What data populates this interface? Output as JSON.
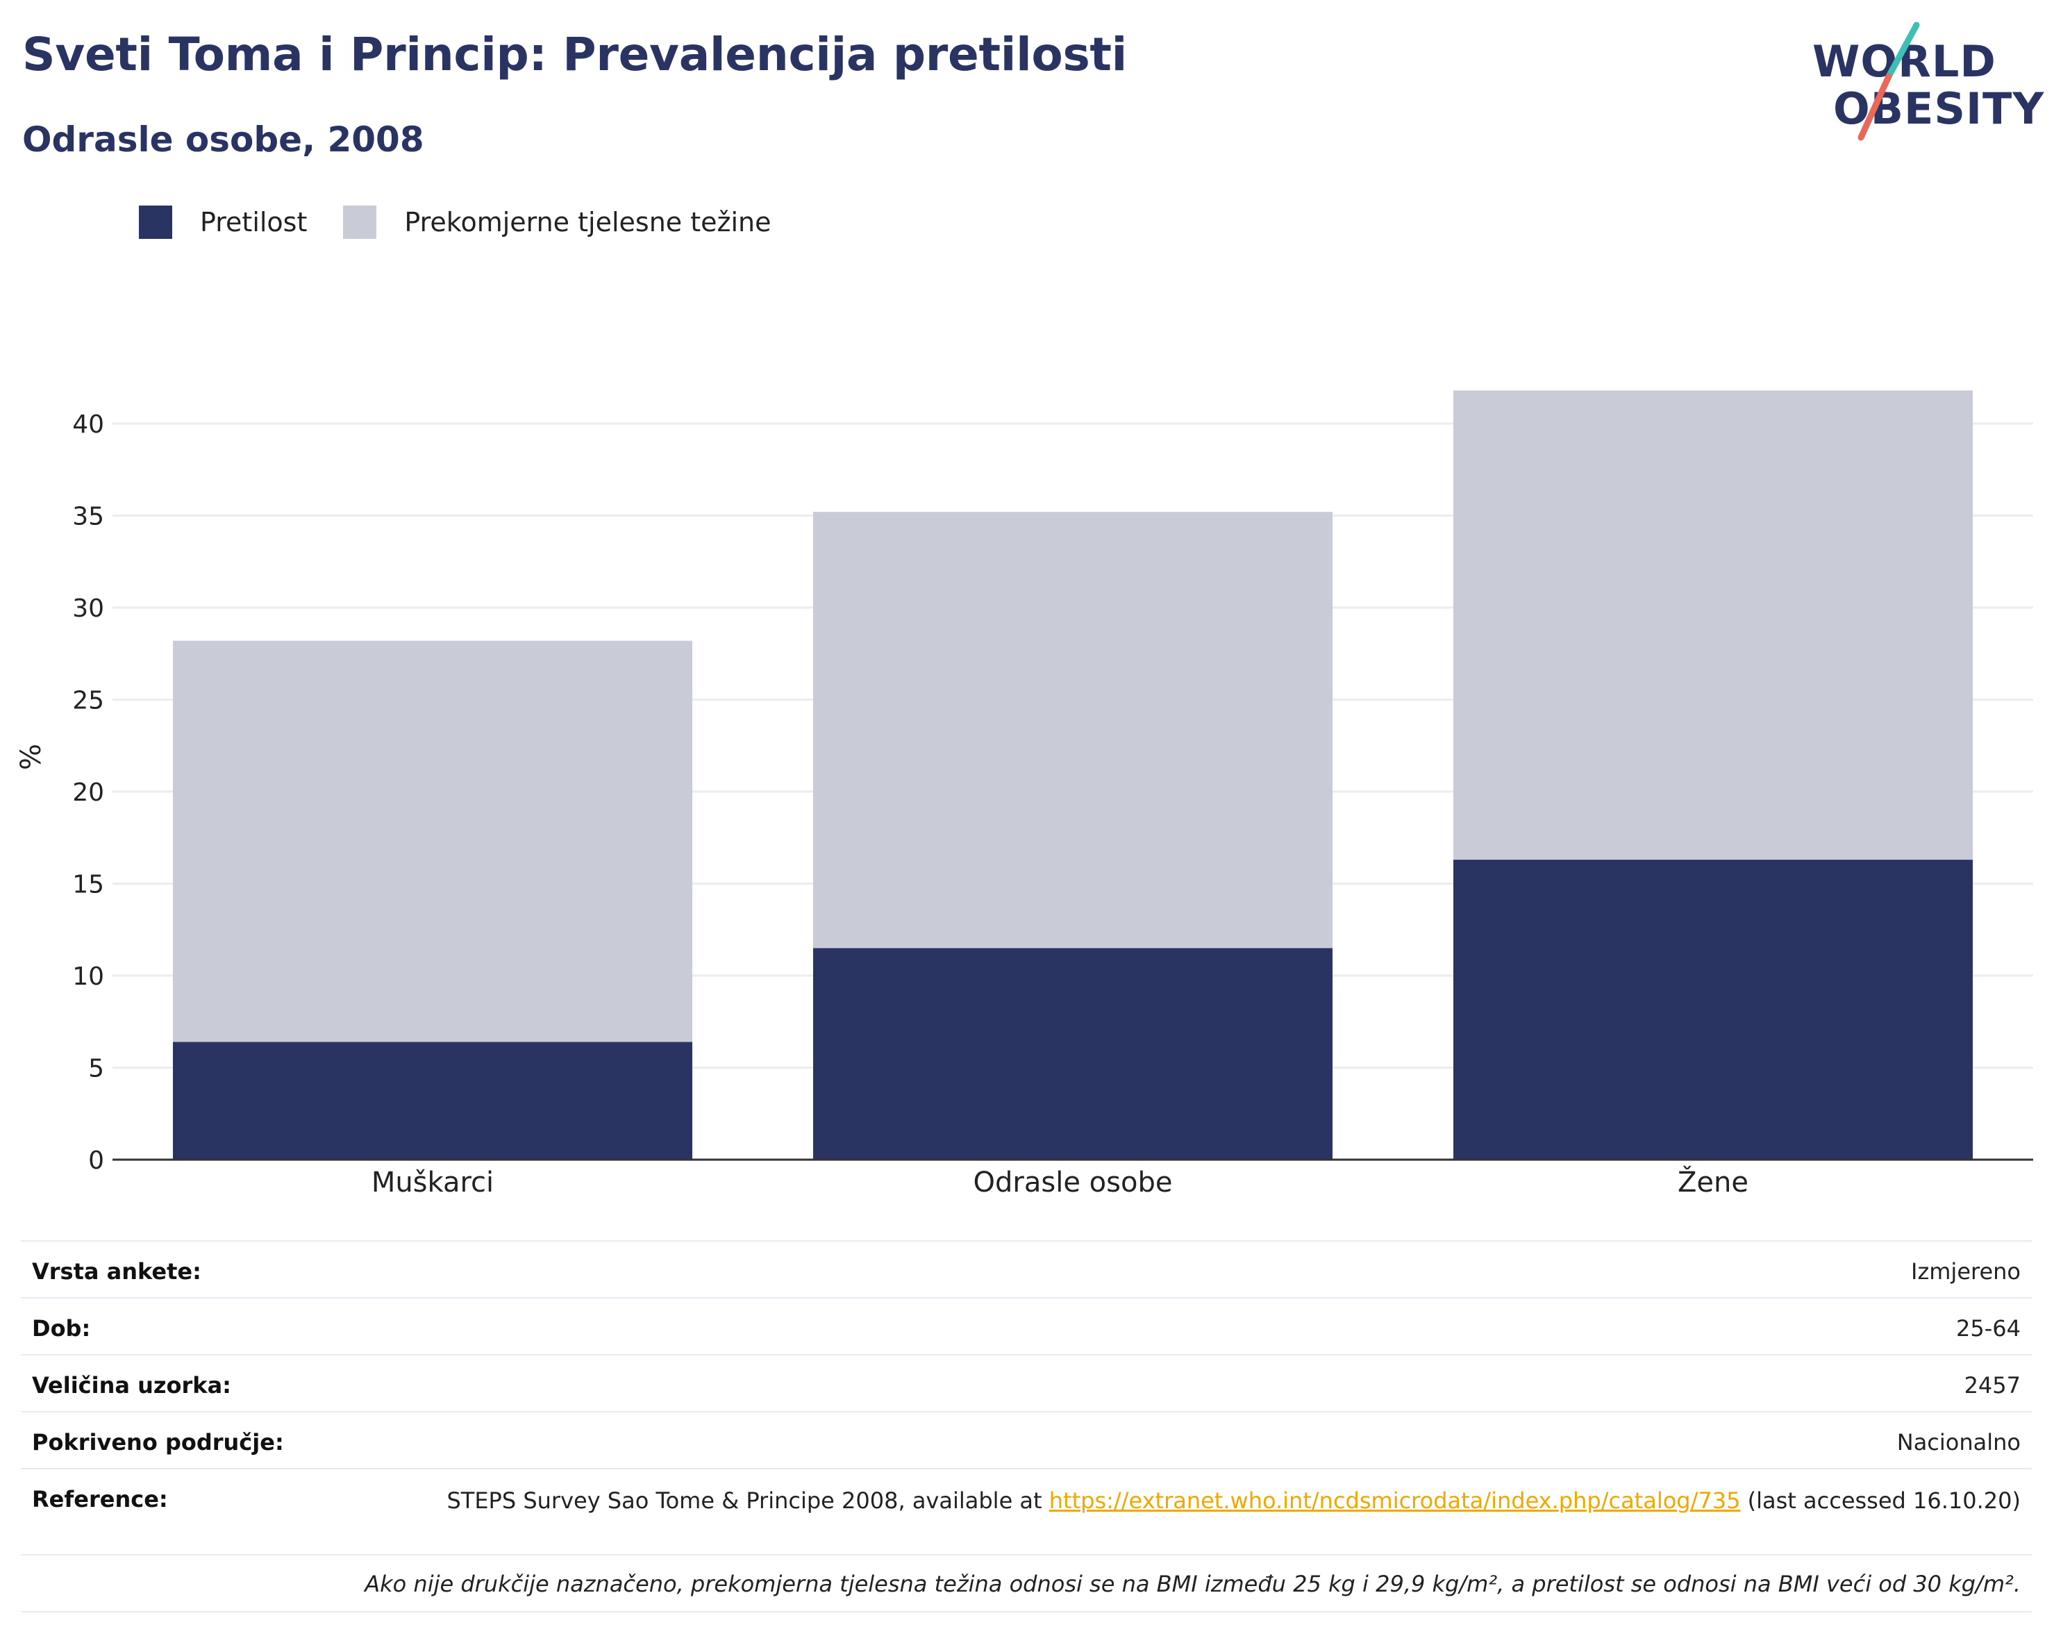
{
  "header": {
    "title": "Sveti Toma i Princip: Prevalencija pretilosti",
    "subtitle": "Odrasle osobe, 2008"
  },
  "logo": {
    "line1": "WORLD",
    "line2": "OBESITY",
    "colors": {
      "text": "#293462",
      "slash_top": "#3cbfb4",
      "slash_bottom": "#e8685a"
    }
  },
  "legend": {
    "items": [
      {
        "label": "Pretilost",
        "color": "#293462"
      },
      {
        "label": "Prekomjerne tjelesne težine",
        "color": "#c9cbd7"
      }
    ]
  },
  "chart_data": {
    "type": "bar",
    "stacked": true,
    "categories": [
      "Muškarci",
      "Odrasle osobe",
      "Žene"
    ],
    "series": [
      {
        "name": "Pretilost",
        "color": "#293462",
        "values": [
          6.4,
          11.5,
          16.3
        ]
      },
      {
        "name": "Prekomjerne tjelesne težine",
        "color": "#c9cbd7",
        "values": [
          21.8,
          23.7,
          25.5
        ]
      }
    ],
    "ylabel": "%",
    "xlabel": "",
    "ylim": [
      0,
      42
    ],
    "yticks": [
      0,
      5,
      10,
      15,
      20,
      25,
      30,
      35,
      40
    ],
    "grid": true,
    "legend_position": "top-left"
  },
  "info": {
    "rows": [
      {
        "label": "Vrsta ankete:",
        "value": "Izmjereno"
      },
      {
        "label": "Dob:",
        "value": "25-64"
      },
      {
        "label": "Veličina uzorka:",
        "value": "2457"
      },
      {
        "label": "Pokriveno područje:",
        "value": "Nacionalno"
      }
    ],
    "reference": {
      "label": "Reference:",
      "text_before": "STEPS Survey Sao Tome & Principe 2008, available at ",
      "link": "https://extranet.who.int/ncdsmicrodata/index.php/catalog/735",
      "text_after": " (last accessed 16.10.20)"
    },
    "note": "Ako nije drukčije naznačeno, prekomjerna tjelesna težina odnosi se na BMI između 25 kg i 29,9 kg/m², a pretilost se odnosi na BMI veći od 30 kg/m²."
  }
}
